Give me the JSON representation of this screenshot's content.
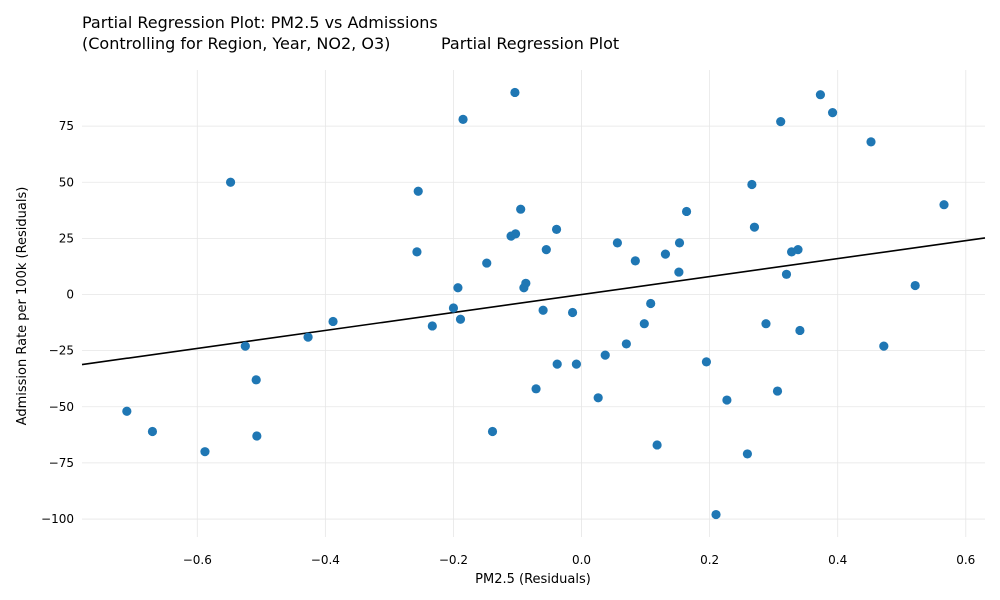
{
  "chart_data": {
    "type": "scatter",
    "title_line1": "Partial Regression Plot: PM2.5 vs Admissions",
    "title_line2": "(Controlling for Region, Year, NO2, O3)",
    "title_suffix": "Partial Regression Plot",
    "xlabel": "PM2.5 (Residuals)",
    "ylabel": "Admission Rate per 100k (Residuals)",
    "xlim": [
      -0.78,
      0.63
    ],
    "ylim": [
      -108,
      100
    ],
    "xticks": [
      -0.6,
      -0.4,
      -0.2,
      0.0,
      0.2,
      0.4,
      0.6
    ],
    "xtick_labels": [
      "−0.6",
      "−0.4",
      "−0.2",
      "0.0",
      "0.2",
      "0.4",
      "0.6"
    ],
    "yticks": [
      -100,
      -75,
      -50,
      -25,
      0,
      25,
      50,
      75
    ],
    "ytick_labels": [
      "−100",
      "−75",
      "−50",
      "−25",
      "0",
      "25",
      "50",
      "75"
    ],
    "grid": true,
    "point_color": "#1f77b4",
    "line_color": "#000000",
    "fit_line": {
      "slope": 40,
      "intercept": 0
    },
    "points": [
      {
        "x": -0.71,
        "y": -52
      },
      {
        "x": -0.67,
        "y": -61
      },
      {
        "x": -0.588,
        "y": -70
      },
      {
        "x": -0.548,
        "y": 50
      },
      {
        "x": -0.525,
        "y": -23
      },
      {
        "x": -0.508,
        "y": -38
      },
      {
        "x": -0.507,
        "y": -63
      },
      {
        "x": -0.427,
        "y": -19
      },
      {
        "x": -0.388,
        "y": -12
      },
      {
        "x": -0.255,
        "y": 46
      },
      {
        "x": -0.257,
        "y": 19
      },
      {
        "x": -0.233,
        "y": -14
      },
      {
        "x": -0.2,
        "y": -6
      },
      {
        "x": -0.193,
        "y": 3
      },
      {
        "x": -0.189,
        "y": -11
      },
      {
        "x": -0.185,
        "y": 78
      },
      {
        "x": -0.148,
        "y": 14
      },
      {
        "x": -0.139,
        "y": -61
      },
      {
        "x": -0.104,
        "y": 90
      },
      {
        "x": -0.11,
        "y": 26
      },
      {
        "x": -0.103,
        "y": 27
      },
      {
        "x": -0.095,
        "y": 38
      },
      {
        "x": -0.09,
        "y": 3
      },
      {
        "x": -0.087,
        "y": 5
      },
      {
        "x": -0.071,
        "y": -42
      },
      {
        "x": -0.06,
        "y": -7
      },
      {
        "x": -0.055,
        "y": 20
      },
      {
        "x": -0.039,
        "y": 29
      },
      {
        "x": -0.038,
        "y": -31
      },
      {
        "x": -0.014,
        "y": -8
      },
      {
        "x": -0.008,
        "y": -31
      },
      {
        "x": 0.026,
        "y": -46
      },
      {
        "x": 0.037,
        "y": -27
      },
      {
        "x": 0.056,
        "y": 23
      },
      {
        "x": 0.07,
        "y": -22
      },
      {
        "x": 0.084,
        "y": 15
      },
      {
        "x": 0.098,
        "y": -13
      },
      {
        "x": 0.108,
        "y": -4
      },
      {
        "x": 0.118,
        "y": -67
      },
      {
        "x": 0.131,
        "y": 18
      },
      {
        "x": 0.152,
        "y": 10
      },
      {
        "x": 0.153,
        "y": 23
      },
      {
        "x": 0.164,
        "y": 37
      },
      {
        "x": 0.195,
        "y": -30
      },
      {
        "x": 0.21,
        "y": -98
      },
      {
        "x": 0.227,
        "y": -47
      },
      {
        "x": 0.259,
        "y": -71
      },
      {
        "x": 0.266,
        "y": 49
      },
      {
        "x": 0.27,
        "y": 30
      },
      {
        "x": 0.288,
        "y": -13
      },
      {
        "x": 0.306,
        "y": -43
      },
      {
        "x": 0.311,
        "y": 77
      },
      {
        "x": 0.32,
        "y": 9
      },
      {
        "x": 0.328,
        "y": 19
      },
      {
        "x": 0.338,
        "y": 20
      },
      {
        "x": 0.341,
        "y": -16
      },
      {
        "x": 0.373,
        "y": 89
      },
      {
        "x": 0.392,
        "y": 81
      },
      {
        "x": 0.452,
        "y": 68
      },
      {
        "x": 0.472,
        "y": -23
      },
      {
        "x": 0.521,
        "y": 4
      },
      {
        "x": 0.566,
        "y": 40
      }
    ]
  }
}
